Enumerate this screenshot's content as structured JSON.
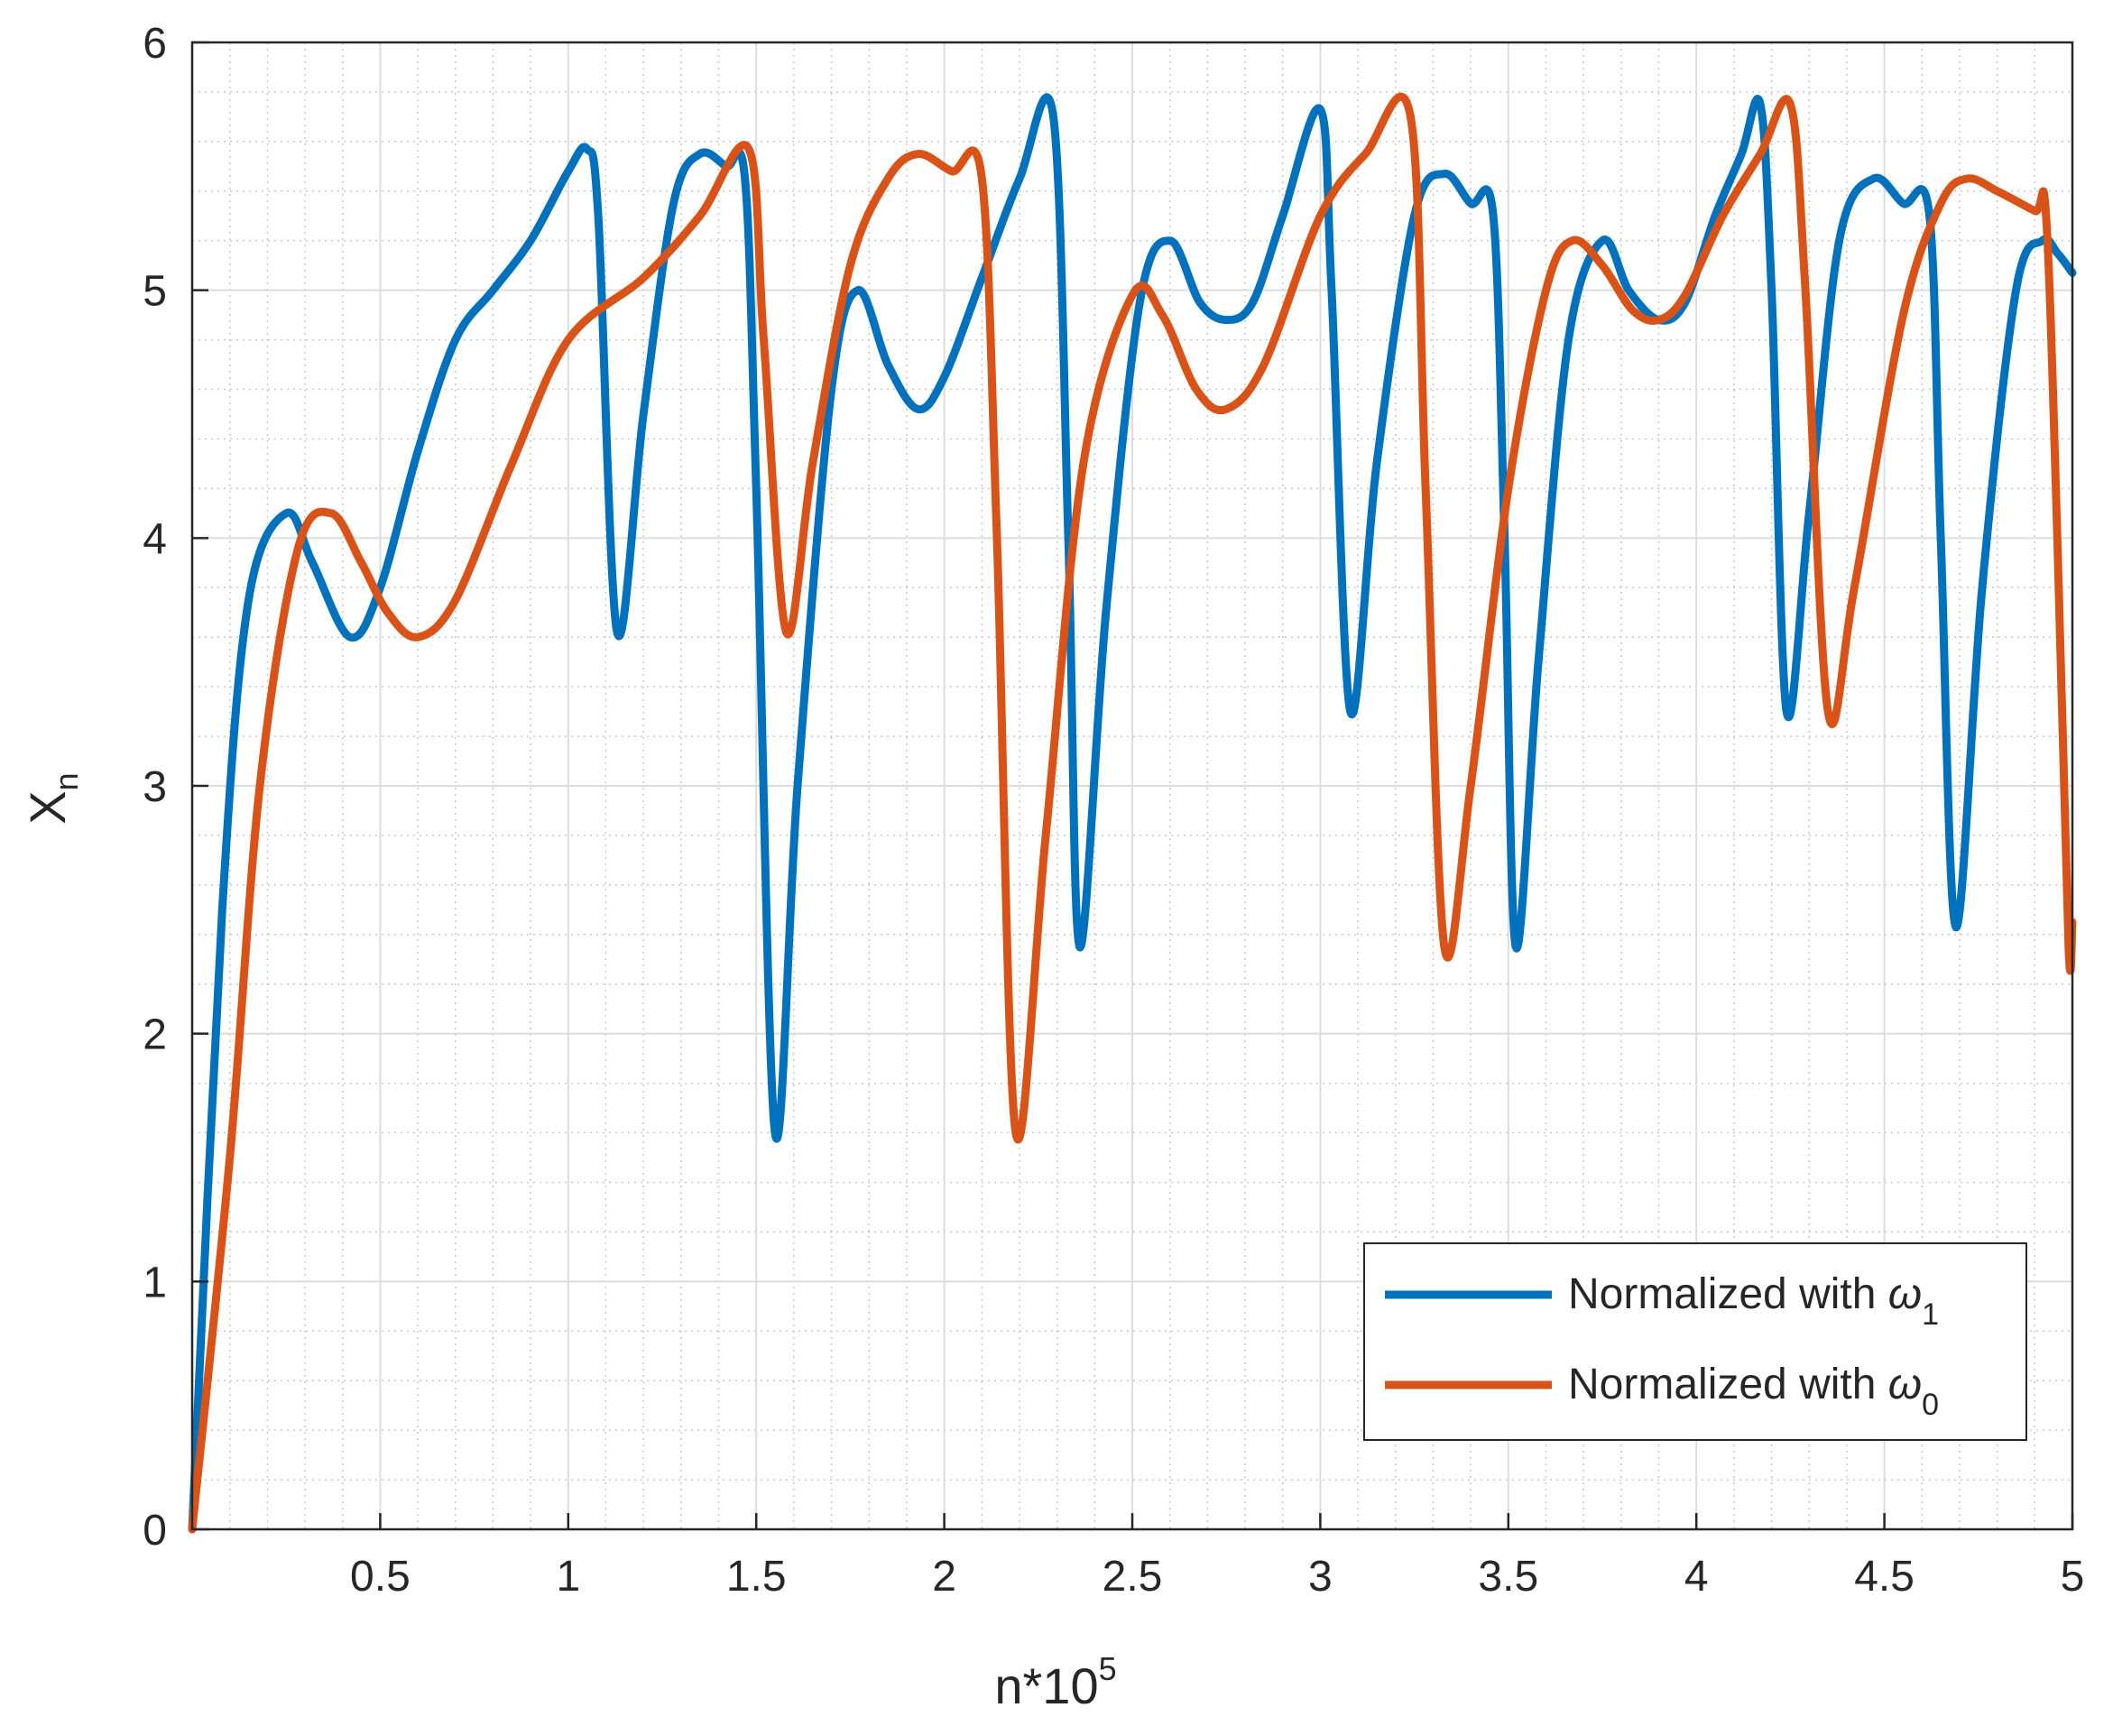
{
  "chart_data": {
    "type": "line",
    "title": "",
    "xlabel": "n*10",
    "xlabel_superscript": "5",
    "ylabel": "X",
    "ylabel_subscript": "n",
    "xlim": [
      0,
      5
    ],
    "ylim": [
      0,
      6
    ],
    "x_ticks": [
      0.5,
      1,
      1.5,
      2,
      2.5,
      3,
      3.5,
      4,
      4.5,
      5
    ],
    "x_tick_labels": [
      "0.5",
      "1",
      "1.5",
      "2",
      "2.5",
      "3",
      "3.5",
      "4",
      "4.5",
      "5"
    ],
    "y_ticks": [
      0,
      1,
      2,
      3,
      4,
      5,
      6
    ],
    "y_tick_labels": [
      "0",
      "1",
      "2",
      "3",
      "4",
      "5",
      "6"
    ],
    "grid": true,
    "minor_grid": true,
    "legend": {
      "position": "bottom-right",
      "entries": [
        {
          "text": "Normalized with ",
          "symbol": "ω",
          "subscript": "1",
          "color": "#0072BD"
        },
        {
          "text": "Normalized with ",
          "symbol": "ω",
          "subscript": "0",
          "color": "#D95319"
        }
      ]
    },
    "series": [
      {
        "name": "Normalized with ω1",
        "color": "#0072BD",
        "points": [
          [
            0,
            0
          ],
          [
            0.08,
            2.5
          ],
          [
            0.15,
            3.75
          ],
          [
            0.25,
            4.1
          ],
          [
            0.32,
            3.9
          ],
          [
            0.42,
            3.6
          ],
          [
            0.5,
            3.8
          ],
          [
            0.6,
            4.35
          ],
          [
            0.7,
            4.8
          ],
          [
            0.8,
            5.0
          ],
          [
            0.9,
            5.2
          ],
          [
            1.0,
            5.48
          ],
          [
            1.05,
            5.57
          ],
          [
            1.08,
            5.3
          ],
          [
            1.13,
            3.62
          ],
          [
            1.2,
            4.5
          ],
          [
            1.28,
            5.35
          ],
          [
            1.35,
            5.55
          ],
          [
            1.42,
            5.5
          ],
          [
            1.47,
            5.45
          ],
          [
            1.5,
            4.2
          ],
          [
            1.55,
            1.6
          ],
          [
            1.61,
            3.0
          ],
          [
            1.7,
            4.6
          ],
          [
            1.77,
            5.0
          ],
          [
            1.85,
            4.7
          ],
          [
            1.93,
            4.52
          ],
          [
            2.0,
            4.65
          ],
          [
            2.1,
            5.05
          ],
          [
            2.2,
            5.45
          ],
          [
            2.29,
            5.7
          ],
          [
            2.33,
            4.0
          ],
          [
            2.36,
            2.35
          ],
          [
            2.43,
            3.7
          ],
          [
            2.52,
            4.95
          ],
          [
            2.6,
            5.2
          ],
          [
            2.68,
            4.95
          ],
          [
            2.75,
            4.88
          ],
          [
            2.82,
            4.95
          ],
          [
            2.9,
            5.3
          ],
          [
            3.0,
            5.73
          ],
          [
            3.03,
            5.0
          ],
          [
            3.08,
            3.3
          ],
          [
            3.15,
            4.3
          ],
          [
            3.25,
            5.3
          ],
          [
            3.33,
            5.47
          ],
          [
            3.4,
            5.35
          ],
          [
            3.46,
            5.3
          ],
          [
            3.49,
            4.0
          ],
          [
            3.52,
            2.35
          ],
          [
            3.58,
            3.5
          ],
          [
            3.66,
            4.8
          ],
          [
            3.75,
            5.2
          ],
          [
            3.82,
            5.0
          ],
          [
            3.9,
            4.88
          ],
          [
            3.97,
            4.95
          ],
          [
            4.05,
            5.3
          ],
          [
            4.12,
            5.55
          ],
          [
            4.17,
            5.75
          ],
          [
            4.2,
            5.0
          ],
          [
            4.24,
            3.3
          ],
          [
            4.3,
            4.1
          ],
          [
            4.38,
            5.2
          ],
          [
            4.47,
            5.45
          ],
          [
            4.55,
            5.35
          ],
          [
            4.62,
            5.3
          ],
          [
            4.65,
            4.0
          ],
          [
            4.69,
            2.43
          ],
          [
            4.76,
            3.8
          ],
          [
            4.85,
            5.0
          ],
          [
            4.92,
            5.2
          ],
          [
            4.96,
            5.15
          ],
          [
            5.0,
            5.07
          ]
        ]
      },
      {
        "name": "Normalized with ω0",
        "color": "#D95319",
        "points": [
          [
            0,
            0
          ],
          [
            0.1,
            1.5
          ],
          [
            0.18,
            3.0
          ],
          [
            0.28,
            3.95
          ],
          [
            0.37,
            4.1
          ],
          [
            0.45,
            3.9
          ],
          [
            0.52,
            3.7
          ],
          [
            0.6,
            3.6
          ],
          [
            0.7,
            3.75
          ],
          [
            0.85,
            4.3
          ],
          [
            1.0,
            4.8
          ],
          [
            1.2,
            5.05
          ],
          [
            1.35,
            5.3
          ],
          [
            1.48,
            5.57
          ],
          [
            1.52,
            4.8
          ],
          [
            1.58,
            3.62
          ],
          [
            1.65,
            4.3
          ],
          [
            1.75,
            5.1
          ],
          [
            1.85,
            5.45
          ],
          [
            1.93,
            5.55
          ],
          [
            2.02,
            5.48
          ],
          [
            2.1,
            5.45
          ],
          [
            2.14,
            4.0
          ],
          [
            2.19,
            1.6
          ],
          [
            2.27,
            2.8
          ],
          [
            2.37,
            4.3
          ],
          [
            2.5,
            4.98
          ],
          [
            2.58,
            4.9
          ],
          [
            2.67,
            4.6
          ],
          [
            2.75,
            4.52
          ],
          [
            2.85,
            4.7
          ],
          [
            3.0,
            5.3
          ],
          [
            3.12,
            5.55
          ],
          [
            3.24,
            5.7
          ],
          [
            3.28,
            4.2
          ],
          [
            3.33,
            2.35
          ],
          [
            3.4,
            3.0
          ],
          [
            3.5,
            4.2
          ],
          [
            3.6,
            5.0
          ],
          [
            3.67,
            5.2
          ],
          [
            3.75,
            5.1
          ],
          [
            3.83,
            4.92
          ],
          [
            3.9,
            4.88
          ],
          [
            3.97,
            4.98
          ],
          [
            4.07,
            5.3
          ],
          [
            4.17,
            5.55
          ],
          [
            4.25,
            5.75
          ],
          [
            4.29,
            5.0
          ],
          [
            4.35,
            3.3
          ],
          [
            4.42,
            3.8
          ],
          [
            4.55,
            4.9
          ],
          [
            4.65,
            5.35
          ],
          [
            4.72,
            5.45
          ],
          [
            4.8,
            5.4
          ],
          [
            4.9,
            5.32
          ],
          [
            4.93,
            5.3
          ],
          [
            4.96,
            4.0
          ],
          [
            4.99,
            2.35
          ],
          [
            5.0,
            2.45
          ]
        ]
      }
    ]
  }
}
